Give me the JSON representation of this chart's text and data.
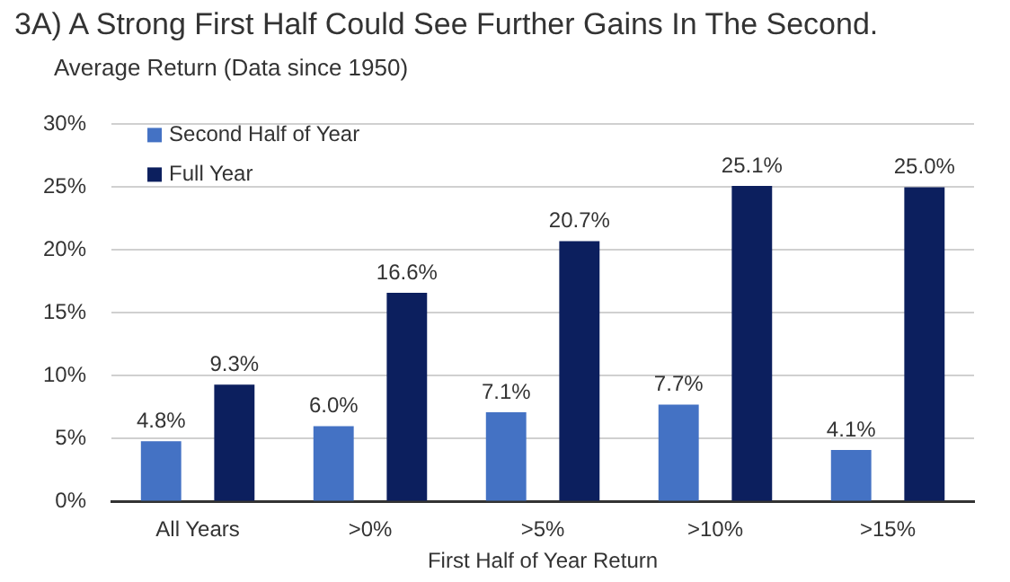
{
  "chart_data": {
    "type": "bar",
    "title": "3A)  A Strong First Half Could See Further Gains In The Second.",
    "subtitle": "Average Return (Data since 1950)",
    "xlabel": "First Half of Year Return",
    "categories": [
      "All Years",
      ">0%",
      ">5%",
      ">10%",
      ">15%"
    ],
    "series": [
      {
        "name": "Second Half of Year",
        "color": "#4472c4",
        "values": [
          4.8,
          6.0,
          7.1,
          7.7,
          4.1
        ]
      },
      {
        "name": "Full Year",
        "color": "#0c1f5e",
        "values": [
          9.3,
          16.6,
          20.7,
          25.1,
          25.0
        ]
      }
    ],
    "value_labels": [
      [
        "4.8%",
        "6.0%",
        "7.1%",
        "7.7%",
        "4.1%"
      ],
      [
        "9.3%",
        "16.6%",
        "20.7%",
        "25.1%",
        "25.0%"
      ]
    ],
    "ylim": [
      0,
      30
    ],
    "yticks": [
      {
        "value": 0,
        "label": "0%"
      },
      {
        "value": 5,
        "label": "5%"
      },
      {
        "value": 10,
        "label": "10%"
      },
      {
        "value": 15,
        "label": "15%"
      },
      {
        "value": 20,
        "label": "20%"
      },
      {
        "value": 25,
        "label": "25%"
      },
      {
        "value": 30,
        "label": "30%"
      }
    ],
    "grid": "y",
    "legend": "top left"
  }
}
